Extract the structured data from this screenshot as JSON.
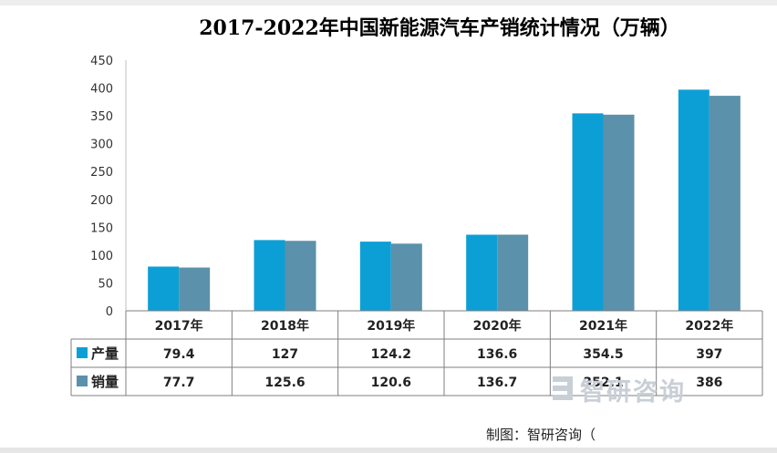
{
  "chart_data": {
    "type": "bar",
    "title": "2017-2022年中国新能源汽车产销统计情况（万辆）",
    "categories": [
      "2017年",
      "2018年",
      "2019年",
      "2020年",
      "2021年",
      "2022年"
    ],
    "series": [
      {
        "name": "产量",
        "values": [
          79.4,
          127,
          124.2,
          136.6,
          354.5,
          397
        ],
        "color": "#0c9fd6"
      },
      {
        "name": "销量",
        "values": [
          77.7,
          125.6,
          120.6,
          136.7,
          352.1,
          386
        ],
        "color": "#5b91aa"
      }
    ],
    "ylim": [
      0,
      450
    ],
    "yticks": [
      0,
      50,
      100,
      150,
      200,
      250,
      300,
      350,
      400,
      450
    ],
    "grid": false,
    "legend": "data-table",
    "data_table": true
  },
  "source": "制图：智研咨询（",
  "watermark": "智研咨询"
}
